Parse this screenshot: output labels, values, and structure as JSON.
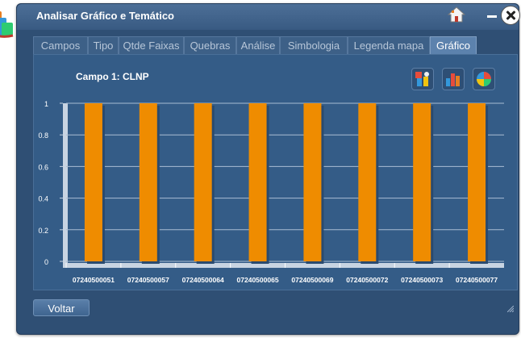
{
  "window": {
    "title": "Analisar Gráfico e Temático"
  },
  "tabs": [
    {
      "label": "Campos",
      "active": false
    },
    {
      "label": "Tipo",
      "active": false
    },
    {
      "label": "Qtde Faixas",
      "active": false
    },
    {
      "label": "Quebras",
      "active": false
    },
    {
      "label": "Análise",
      "active": false
    },
    {
      "label": "Simbologia",
      "active": false
    },
    {
      "label": "Legenda mapa",
      "active": false
    },
    {
      "label": "Gráfico",
      "active": true
    }
  ],
  "panel": {
    "field_label": "Campo 1: CLNP",
    "chart_buttons": [
      "properties-chart-icon",
      "bar-chart-icon",
      "pie-chart-icon"
    ]
  },
  "chart_data": {
    "type": "bar",
    "categories": [
      "07240500051",
      "07240500057",
      "07240500064",
      "07240500065",
      "07240500069",
      "07240500072",
      "07240500073",
      "07240500077"
    ],
    "values": [
      1,
      1,
      1,
      1,
      1,
      1,
      1,
      1
    ],
    "yticks": [
      "0",
      "0.2",
      "0.4",
      "0.6",
      "0.8",
      "1"
    ],
    "ylim": [
      0,
      1
    ],
    "bar_color": "#ef8c00",
    "grid": true
  },
  "footer": {
    "back_label": "Voltar"
  },
  "colors": {
    "background": "#2f4f74",
    "accent": "#ef8c00"
  }
}
